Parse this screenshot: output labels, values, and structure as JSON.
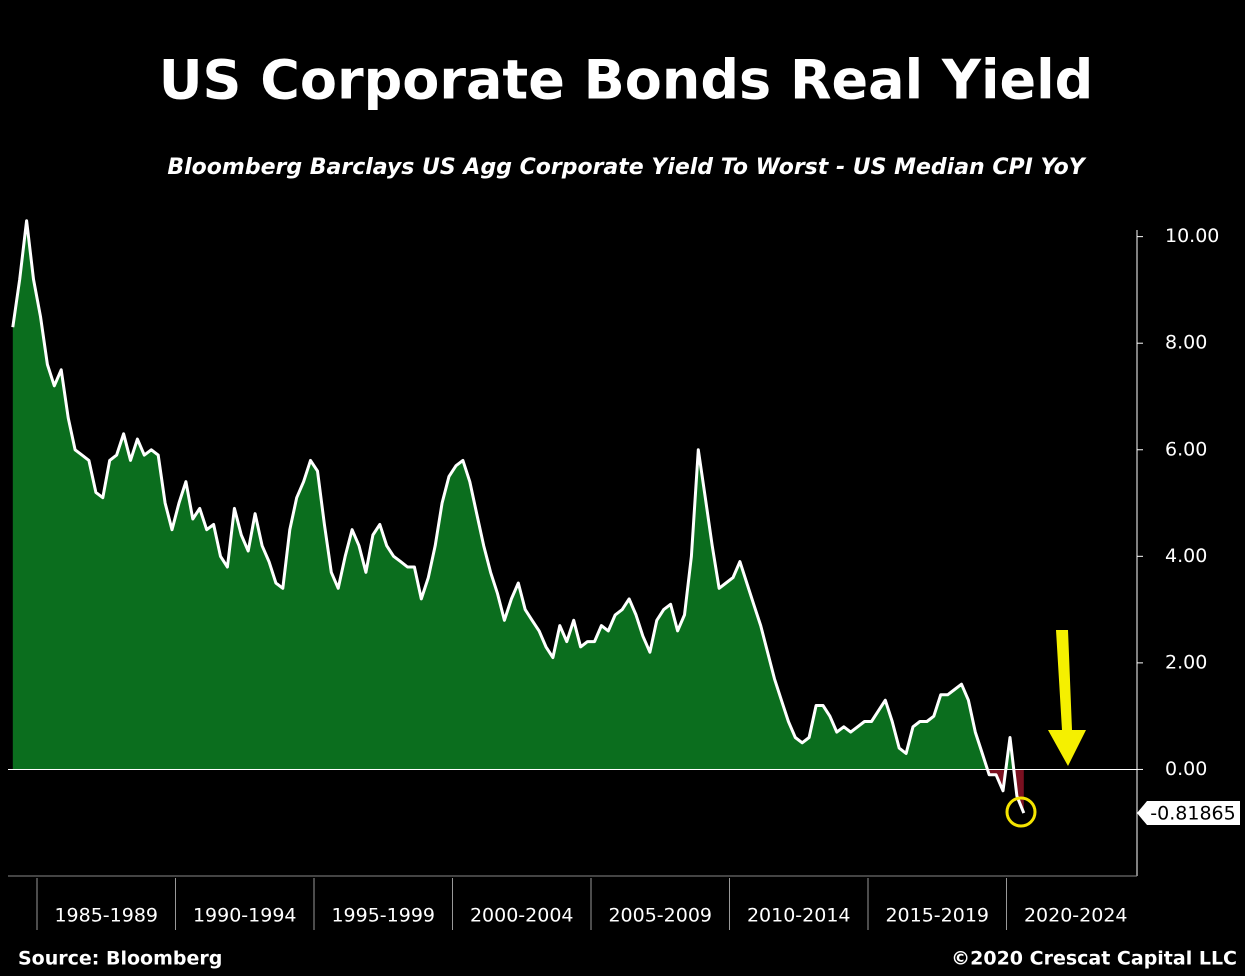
{
  "chart_data": {
    "type": "area",
    "title": "US Corporate Bonds Real Yield",
    "subtitle": "Bloomberg Barclays US Agg Corporate Yield To Worst - US Median CPI YoY",
    "categories": [
      null,
      "1985-1989",
      "1990-1994",
      "1995-1999",
      "2000-2004",
      "2005-2009",
      "2010-2014",
      "2015-2019",
      "2020-2024"
    ],
    "values": [
      [
        8.3,
        9.2,
        10.3,
        9.2
      ],
      [
        8.5,
        7.6,
        7.2,
        7.5,
        6.6,
        6.0,
        5.9,
        5.8,
        5.2,
        5.1,
        5.8,
        5.9,
        6.3,
        5.8,
        6.2,
        5.9,
        6.0,
        5.9,
        5.0,
        4.5
      ],
      [
        5.0,
        5.4,
        4.7,
        4.9,
        4.5,
        4.6,
        4.0,
        3.8,
        4.9,
        4.4,
        4.1,
        4.8,
        4.2,
        3.9,
        3.5,
        3.4,
        4.5,
        5.1,
        5.4,
        5.8
      ],
      [
        5.6,
        4.6,
        3.7,
        3.4,
        4.0,
        4.5,
        4.2,
        3.7,
        4.4,
        4.6,
        4.2,
        4.0,
        3.9,
        3.8,
        3.8,
        3.2,
        3.6,
        4.2,
        5.0,
        5.5
      ],
      [
        5.7,
        5.8,
        5.4,
        4.8,
        4.2,
        3.7,
        3.3,
        2.8,
        3.2,
        3.5,
        3.0,
        2.8,
        2.6,
        2.3,
        2.1,
        2.7,
        2.4,
        2.8,
        2.3,
        2.4
      ],
      [
        2.4,
        2.7,
        2.6,
        2.9,
        3.0,
        3.2,
        2.9,
        2.5,
        2.2,
        2.8,
        3.0,
        3.1,
        2.6,
        2.9,
        4.0,
        6.0,
        5.1,
        4.2,
        3.4,
        3.5
      ],
      [
        3.6,
        3.9,
        3.5,
        3.1,
        2.7,
        2.2,
        1.7,
        1.3,
        0.9,
        0.6,
        0.5,
        0.6,
        1.2,
        1.2,
        1.0,
        0.7,
        0.8,
        0.7,
        0.8,
        0.9
      ],
      [
        0.9,
        1.1,
        1.3,
        0.9,
        0.4,
        0.3,
        0.8,
        0.9,
        0.9,
        1.0,
        1.4,
        1.4,
        1.5,
        1.6,
        1.3,
        0.7,
        0.3,
        -0.1,
        -0.1,
        -0.4
      ],
      [
        0.6,
        -0.5,
        -0.81865
      ]
    ],
    "color": "#0b6e1e",
    "negative_color": "#7a1020",
    "ylim": [
      -2,
      10.5
    ],
    "yticks": [
      {
        "value": 0,
        "label": "0.00"
      },
      {
        "value": 2,
        "label": "2.00"
      },
      {
        "value": 4,
        "label": "4.00"
      },
      {
        "value": 6,
        "label": "6.00"
      },
      {
        "value": 8,
        "label": "8.00"
      },
      {
        "value": 10,
        "label": "10.00"
      }
    ],
    "source": "Source: Bloomberg",
    "copyright": "©2020 Crescat Capital LLC"
  }
}
